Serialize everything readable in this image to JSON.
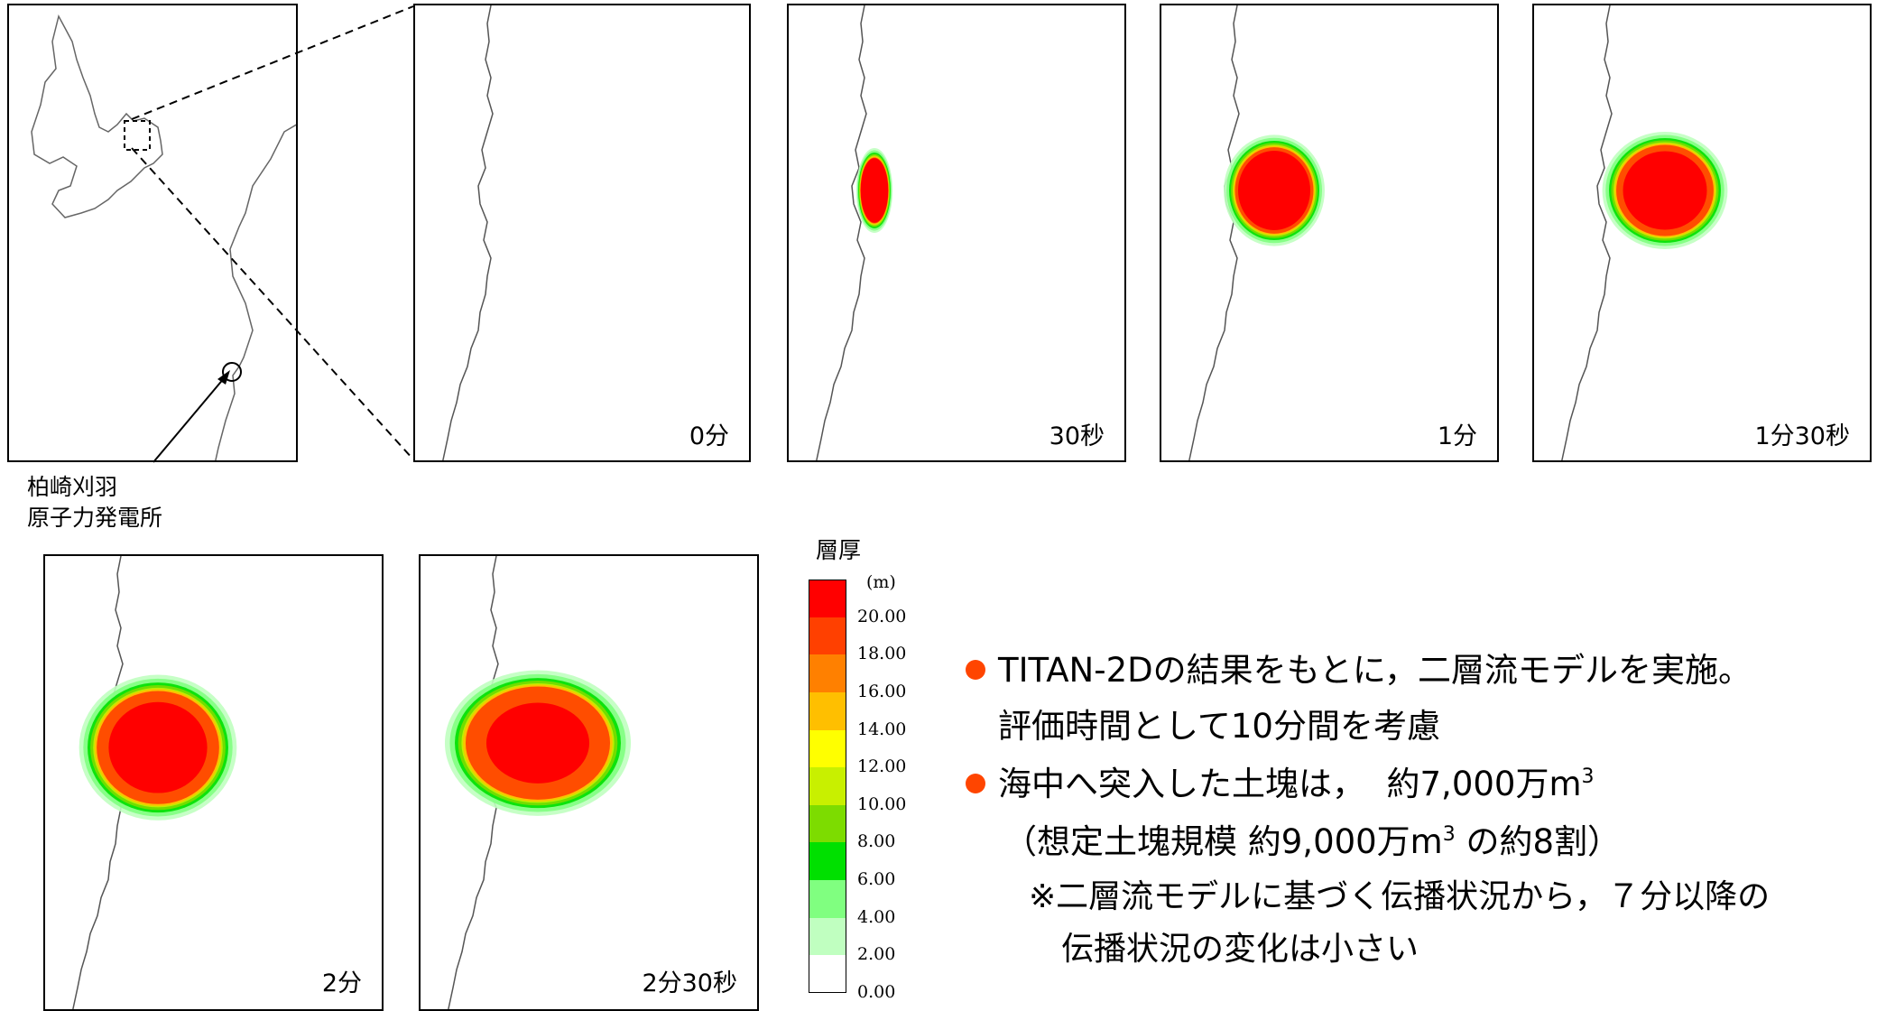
{
  "site_label": {
    "line1": "柏崎刈羽",
    "line2": "原子力発電所"
  },
  "panels": [
    {
      "label": "0分",
      "flow": 0
    },
    {
      "label": "30秒",
      "flow": 1
    },
    {
      "label": "1分",
      "flow": 2
    },
    {
      "label": "1分30秒",
      "flow": 3
    },
    {
      "label": "2分",
      "flow": 4
    },
    {
      "label": "2分30秒",
      "flow": 5
    }
  ],
  "legend": {
    "title": "層厚",
    "unit": "(m)",
    "ticks": [
      "20.00",
      "18.00",
      "16.00",
      "14.00",
      "12.00",
      "10.00",
      "8.00",
      "6.00",
      "4.00",
      "2.00",
      "0.00"
    ],
    "colors": [
      "#ff0000",
      "#ff4000",
      "#ff8000",
      "#ffbf00",
      "#ffff00",
      "#c8f000",
      "#7ddc00",
      "#00e000",
      "#80ff80",
      "#c0ffc0",
      "#ffffff"
    ]
  },
  "notes": {
    "b1_l1": "TITAN-2Dの結果をもとに，二層流モデルを実施。",
    "b1_l2": "評価時間として10分間を考慮",
    "b2_pre": "海中へ突入した土塊は，  約7,000万m",
    "b2_sup": "3",
    "l3_pre": "（想定土塊規模 約9,000万m",
    "l3_sup": "3",
    "l3_post": " の約8割）",
    "l4": "※二層流モデルに基づく伝播状況から，７分以降の",
    "l5": "伝播状況の変化は小さい"
  }
}
